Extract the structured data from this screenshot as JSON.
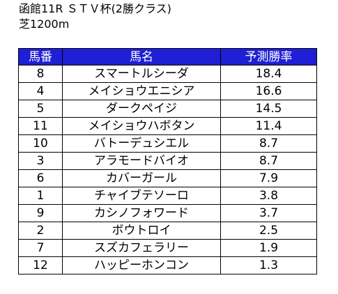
{
  "header": {
    "title": "函館11R ＳＴＶ杯(2勝クラス)",
    "course": "芝1200m"
  },
  "table": {
    "columns": [
      "馬番",
      "馬名",
      "予測勝率"
    ],
    "rows": [
      {
        "num": "8",
        "name": "スマートルシーダ",
        "rate": "18.4"
      },
      {
        "num": "4",
        "name": "メイショウエニシア",
        "rate": "16.6"
      },
      {
        "num": "5",
        "name": "ダークペイジ",
        "rate": "14.5"
      },
      {
        "num": "11",
        "name": "メイショウハボタン",
        "rate": "11.4"
      },
      {
        "num": "10",
        "name": "バトーデュシエル",
        "rate": "8.7"
      },
      {
        "num": "3",
        "name": "アラモードバイオ",
        "rate": "8.7"
      },
      {
        "num": "6",
        "name": "カバーガール",
        "rate": "7.9"
      },
      {
        "num": "1",
        "name": "チャイブテソーロ",
        "rate": "3.8"
      },
      {
        "num": "9",
        "name": "カシノフォワード",
        "rate": "3.7"
      },
      {
        "num": "2",
        "name": "ボウトロイ",
        "rate": "2.5"
      },
      {
        "num": "7",
        "name": "スズカフェラリー",
        "rate": "1.9"
      },
      {
        "num": "12",
        "name": "ハッピーホンコン",
        "rate": "1.3"
      }
    ]
  },
  "colors": {
    "header_bg": "#1f1fd6",
    "header_text": "#ffffff"
  }
}
